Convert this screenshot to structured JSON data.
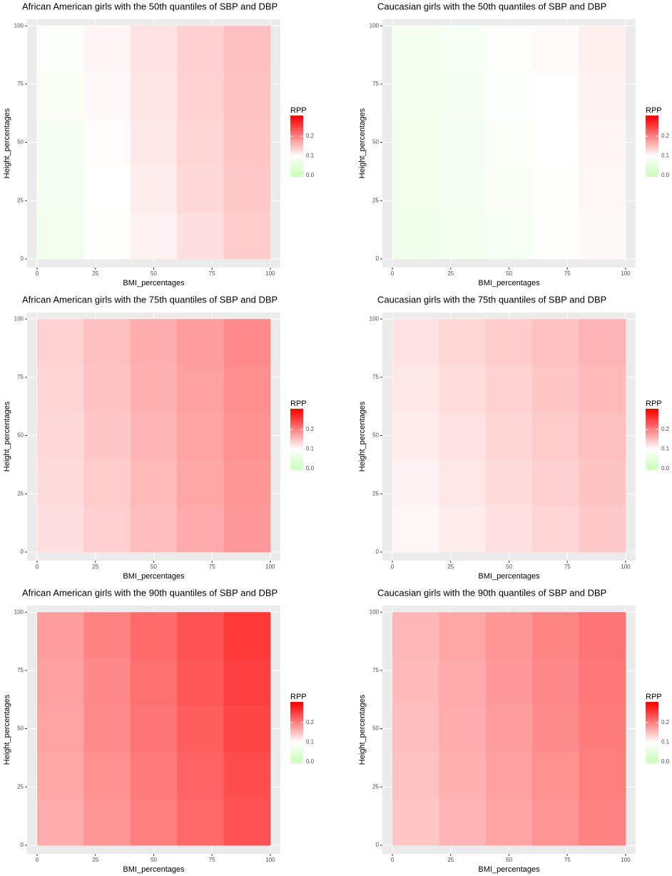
{
  "chart_data": [
    {
      "type": "heatmap",
      "title": "African American girls with the 50th quantiles of SBP and DBP",
      "x_label": "BMI_percentages",
      "y_label": "Height_percentages",
      "x": [
        10,
        30,
        50,
        70,
        90
      ],
      "y": [
        10,
        30,
        50,
        70,
        90
      ],
      "values": [
        [
          0.075,
          0.095,
          0.11,
          0.125,
          0.14
        ],
        [
          0.08,
          0.1,
          0.115,
          0.13,
          0.142
        ],
        [
          0.085,
          0.102,
          0.118,
          0.132,
          0.145
        ],
        [
          0.088,
          0.105,
          0.12,
          0.135,
          0.148
        ],
        [
          0.092,
          0.108,
          0.122,
          0.137,
          0.15
        ]
      ],
      "xlim": [
        -4.3,
        104.3
      ],
      "ylim": [
        -3.7,
        102.8
      ],
      "xticks": [
        0,
        25,
        50,
        75,
        100
      ],
      "yticks": [
        0,
        25,
        50,
        75,
        100
      ],
      "legend_title": "RPP",
      "legend_ticks": [
        {
          "value": 0,
          "label": "0.0"
        },
        0.1,
        0.2
      ],
      "legend_limits": [
        -0.007,
        0.305
      ],
      "color_stops": [
        {
          "value": 0,
          "color": "#ccffbb"
        },
        {
          "value": 0.1,
          "color": "#ffffff"
        },
        {
          "value": 0.3,
          "color": "#ff0000"
        }
      ]
    },
    {
      "type": "heatmap",
      "title": "Caucasian girls with the 50th quantiles of SBP and DBP",
      "x_label": "BMI_percentages",
      "y_label": "Height_percentages",
      "x": [
        10,
        30,
        50,
        70,
        90
      ],
      "y": [
        10,
        30,
        50,
        70,
        90
      ],
      "values": [
        [
          0.07,
          0.078,
          0.086,
          0.094,
          0.104
        ],
        [
          0.072,
          0.08,
          0.088,
          0.097,
          0.106
        ],
        [
          0.074,
          0.082,
          0.09,
          0.099,
          0.108
        ],
        [
          0.076,
          0.084,
          0.093,
          0.101,
          0.11
        ],
        [
          0.078,
          0.086,
          0.095,
          0.103,
          0.112
        ]
      ],
      "xlim": [
        -4.3,
        104.3
      ],
      "ylim": [
        -3.7,
        102.8
      ],
      "xticks": [
        0,
        25,
        50,
        75,
        100
      ],
      "yticks": [
        0,
        25,
        50,
        75,
        100
      ],
      "legend_title": "RPP",
      "legend_ticks": [
        {
          "value": 0,
          "label": "0.0"
        },
        0.1,
        0.2
      ],
      "legend_limits": [
        -0.007,
        0.305
      ],
      "color_stops": [
        {
          "value": 0,
          "color": "#ccffbb"
        },
        {
          "value": 0.1,
          "color": "#ffffff"
        },
        {
          "value": 0.3,
          "color": "#ff0000"
        }
      ]
    },
    {
      "type": "heatmap",
      "title": "African American girls with the 75th quantiles of SBP and DBP",
      "x_label": "BMI_percentages",
      "y_label": "Height_percentages",
      "x": [
        10,
        30,
        50,
        70,
        90
      ],
      "y": [
        10,
        30,
        50,
        70,
        90
      ],
      "values": [
        [
          0.125,
          0.138,
          0.152,
          0.166,
          0.18
        ],
        [
          0.128,
          0.141,
          0.155,
          0.169,
          0.183
        ],
        [
          0.13,
          0.144,
          0.158,
          0.172,
          0.186
        ],
        [
          0.133,
          0.147,
          0.161,
          0.175,
          0.189
        ],
        [
          0.136,
          0.15,
          0.164,
          0.178,
          0.192
        ]
      ],
      "xlim": [
        -4.3,
        104.3
      ],
      "ylim": [
        -3.7,
        102.8
      ],
      "xticks": [
        0,
        25,
        50,
        75,
        100
      ],
      "yticks": [
        0,
        25,
        50,
        75,
        100
      ],
      "legend_title": "RPP",
      "legend_ticks": [
        {
          "value": 0,
          "label": "0.0"
        },
        0.1,
        0.2
      ],
      "legend_limits": [
        -0.007,
        0.305
      ],
      "color_stops": [
        {
          "value": 0,
          "color": "#ccffbb"
        },
        {
          "value": 0.1,
          "color": "#ffffff"
        },
        {
          "value": 0.3,
          "color": "#ff0000"
        }
      ]
    },
    {
      "type": "heatmap",
      "title": "Caucasian girls with the 75th quantiles of SBP and DBP",
      "x_label": "BMI_percentages",
      "y_label": "Height_percentages",
      "x": [
        10,
        30,
        50,
        70,
        90
      ],
      "y": [
        10,
        30,
        50,
        70,
        90
      ],
      "values": [
        [
          0.106,
          0.115,
          0.124,
          0.133,
          0.142
        ],
        [
          0.11,
          0.119,
          0.128,
          0.137,
          0.146
        ],
        [
          0.114,
          0.123,
          0.132,
          0.141,
          0.15
        ],
        [
          0.118,
          0.127,
          0.136,
          0.145,
          0.154
        ],
        [
          0.122,
          0.131,
          0.14,
          0.149,
          0.158
        ]
      ],
      "xlim": [
        -4.3,
        104.3
      ],
      "ylim": [
        -3.7,
        102.8
      ],
      "xticks": [
        0,
        25,
        50,
        75,
        100
      ],
      "yticks": [
        0,
        25,
        50,
        75,
        100
      ],
      "legend_title": "RPP",
      "legend_ticks": [
        {
          "value": 0,
          "label": "0.0"
        },
        0.1,
        0.2
      ],
      "legend_limits": [
        -0.007,
        0.305
      ],
      "color_stops": [
        {
          "value": 0,
          "color": "#ccffbb"
        },
        {
          "value": 0.1,
          "color": "#ffffff"
        },
        {
          "value": 0.3,
          "color": "#ff0000"
        }
      ]
    },
    {
      "type": "heatmap",
      "title": "African American girls with the 90th quantiles of SBP and DBP",
      "x_label": "BMI_percentages",
      "y_label": "Height_percentages",
      "x": [
        10,
        30,
        50,
        70,
        90
      ],
      "y": [
        10,
        30,
        50,
        70,
        90
      ],
      "values": [
        [
          0.165,
          0.183,
          0.2,
          0.218,
          0.235
        ],
        [
          0.168,
          0.186,
          0.204,
          0.222,
          0.24
        ],
        [
          0.171,
          0.19,
          0.208,
          0.226,
          0.245
        ],
        [
          0.174,
          0.193,
          0.212,
          0.231,
          0.25
        ],
        [
          0.178,
          0.197,
          0.216,
          0.236,
          0.256
        ]
      ],
      "xlim": [
        -4.3,
        104.3
      ],
      "ylim": [
        -3.7,
        102.8
      ],
      "xticks": [
        0,
        25,
        50,
        75,
        100
      ],
      "yticks": [
        0,
        25,
        50,
        75,
        100
      ],
      "legend_title": "RPP",
      "legend_ticks": [
        {
          "value": 0,
          "label": "0.0"
        },
        0.1,
        0.2
      ],
      "legend_limits": [
        -0.007,
        0.305
      ],
      "color_stops": [
        {
          "value": 0,
          "color": "#ccffbb"
        },
        {
          "value": 0.1,
          "color": "#ffffff"
        },
        {
          "value": 0.3,
          "color": "#ff0000"
        }
      ]
    },
    {
      "type": "heatmap",
      "title": "Caucasian girls with the 90th quantiles of SBP and DBP",
      "x_label": "BMI_percentages",
      "y_label": "Height_percentages",
      "x": [
        10,
        30,
        50,
        70,
        90
      ],
      "y": [
        10,
        30,
        50,
        70,
        90
      ],
      "values": [
        [
          0.145,
          0.158,
          0.171,
          0.184,
          0.197
        ],
        [
          0.148,
          0.161,
          0.174,
          0.187,
          0.2
        ],
        [
          0.151,
          0.164,
          0.177,
          0.19,
          0.203
        ],
        [
          0.154,
          0.167,
          0.18,
          0.193,
          0.206
        ],
        [
          0.157,
          0.17,
          0.183,
          0.196,
          0.209
        ]
      ],
      "xlim": [
        -4.3,
        104.3
      ],
      "ylim": [
        -3.7,
        102.8
      ],
      "xticks": [
        0,
        25,
        50,
        75,
        100
      ],
      "yticks": [
        0,
        25,
        50,
        75,
        100
      ],
      "legend_title": "RPP",
      "legend_ticks": [
        {
          "value": 0,
          "label": "0.0"
        },
        0.1,
        0.2
      ],
      "legend_limits": [
        -0.007,
        0.305
      ],
      "color_stops": [
        {
          "value": 0,
          "color": "#ccffbb"
        },
        {
          "value": 0.1,
          "color": "#ffffff"
        },
        {
          "value": 0.3,
          "color": "#ff0000"
        }
      ]
    }
  ]
}
